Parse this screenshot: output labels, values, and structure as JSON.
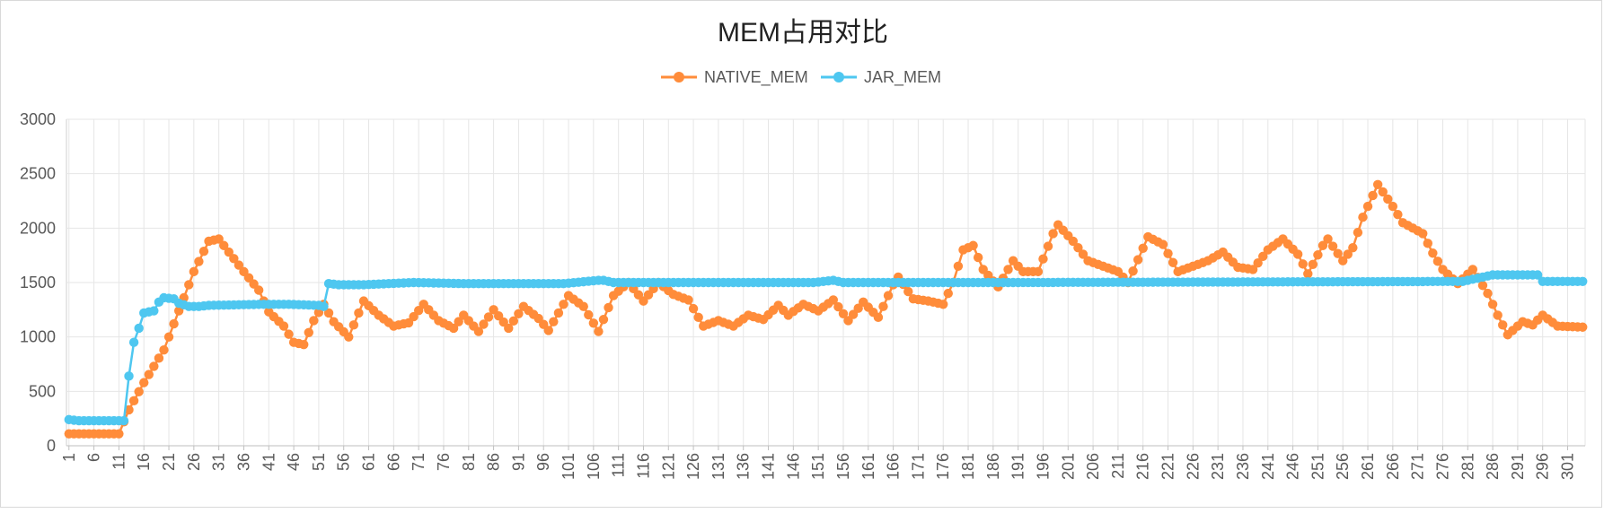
{
  "chart_data": {
    "type": "line",
    "title": "MEM占用对比",
    "xlabel": "",
    "ylabel": "",
    "ylim": [
      0,
      3000
    ],
    "yticks": [
      0,
      500,
      1000,
      1500,
      2000,
      2500,
      3000
    ],
    "x_range": [
      1,
      304
    ],
    "x_tick_step": 5,
    "grid": true,
    "legend_position": "top-center",
    "series": [
      {
        "name": "NATIVE_MEM",
        "color": "#FF8C3A",
        "anchors": [
          [
            1,
            110
          ],
          [
            11,
            110
          ],
          [
            13,
            330
          ],
          [
            16,
            580
          ],
          [
            20,
            880
          ],
          [
            26,
            1600
          ],
          [
            29,
            1880
          ],
          [
            31,
            1900
          ],
          [
            33,
            1780
          ],
          [
            36,
            1600
          ],
          [
            39,
            1430
          ],
          [
            41,
            1230
          ],
          [
            44,
            1100
          ],
          [
            46,
            950
          ],
          [
            48,
            930
          ],
          [
            50,
            1150
          ],
          [
            52,
            1300
          ],
          [
            54,
            1140
          ],
          [
            57,
            1000
          ],
          [
            60,
            1330
          ],
          [
            63,
            1200
          ],
          [
            66,
            1100
          ],
          [
            69,
            1130
          ],
          [
            72,
            1300
          ],
          [
            75,
            1150
          ],
          [
            78,
            1080
          ],
          [
            80,
            1200
          ],
          [
            83,
            1050
          ],
          [
            86,
            1250
          ],
          [
            89,
            1080
          ],
          [
            92,
            1280
          ],
          [
            95,
            1170
          ],
          [
            97,
            1060
          ],
          [
            101,
            1380
          ],
          [
            104,
            1280
          ],
          [
            107,
            1050
          ],
          [
            110,
            1380
          ],
          [
            113,
            1500
          ],
          [
            116,
            1330
          ],
          [
            119,
            1500
          ],
          [
            122,
            1390
          ],
          [
            125,
            1340
          ],
          [
            128,
            1100
          ],
          [
            131,
            1150
          ],
          [
            134,
            1100
          ],
          [
            137,
            1200
          ],
          [
            140,
            1160
          ],
          [
            143,
            1290
          ],
          [
            145,
            1200
          ],
          [
            148,
            1300
          ],
          [
            151,
            1240
          ],
          [
            154,
            1340
          ],
          [
            157,
            1150
          ],
          [
            160,
            1320
          ],
          [
            163,
            1180
          ],
          [
            166,
            1480
          ],
          [
            167,
            1550
          ],
          [
            170,
            1350
          ],
          [
            173,
            1330
          ],
          [
            176,
            1300
          ],
          [
            178,
            1500
          ],
          [
            180,
            1800
          ],
          [
            182,
            1840
          ],
          [
            184,
            1620
          ],
          [
            187,
            1460
          ],
          [
            190,
            1700
          ],
          [
            192,
            1600
          ],
          [
            195,
            1600
          ],
          [
            198,
            1950
          ],
          [
            199,
            2030
          ],
          [
            202,
            1880
          ],
          [
            205,
            1700
          ],
          [
            208,
            1650
          ],
          [
            211,
            1600
          ],
          [
            213,
            1500
          ],
          [
            217,
            1920
          ],
          [
            220,
            1850
          ],
          [
            223,
            1600
          ],
          [
            226,
            1650
          ],
          [
            229,
            1700
          ],
          [
            232,
            1780
          ],
          [
            235,
            1640
          ],
          [
            238,
            1620
          ],
          [
            241,
            1800
          ],
          [
            244,
            1900
          ],
          [
            247,
            1760
          ],
          [
            249,
            1580
          ],
          [
            252,
            1840
          ],
          [
            253,
            1900
          ],
          [
            256,
            1700
          ],
          [
            258,
            1820
          ],
          [
            260,
            2100
          ],
          [
            262,
            2300
          ],
          [
            263,
            2400
          ],
          [
            266,
            2200
          ],
          [
            268,
            2050
          ],
          [
            272,
            1950
          ],
          [
            274,
            1770
          ],
          [
            276,
            1620
          ],
          [
            279,
            1490
          ],
          [
            282,
            1620
          ],
          [
            285,
            1400
          ],
          [
            287,
            1200
          ],
          [
            289,
            1020
          ],
          [
            292,
            1140
          ],
          [
            294,
            1110
          ],
          [
            296,
            1200
          ],
          [
            299,
            1100
          ],
          [
            304,
            1090
          ]
        ]
      },
      {
        "name": "JAR_MEM",
        "color": "#4EC7F0",
        "anchors": [
          [
            1,
            240
          ],
          [
            3,
            230
          ],
          [
            12,
            230
          ],
          [
            13,
            640
          ],
          [
            14,
            950
          ],
          [
            15,
            1080
          ],
          [
            16,
            1220
          ],
          [
            18,
            1240
          ],
          [
            19,
            1320
          ],
          [
            20,
            1360
          ],
          [
            22,
            1350
          ],
          [
            23,
            1310
          ],
          [
            25,
            1280
          ],
          [
            27,
            1280
          ],
          [
            29,
            1290
          ],
          [
            40,
            1300
          ],
          [
            45,
            1300
          ],
          [
            51,
            1290
          ],
          [
            52,
            1280
          ],
          [
            53,
            1490
          ],
          [
            55,
            1480
          ],
          [
            60,
            1480
          ],
          [
            70,
            1500
          ],
          [
            80,
            1490
          ],
          [
            100,
            1490
          ],
          [
            107,
            1520
          ],
          [
            108,
            1520
          ],
          [
            110,
            1500
          ],
          [
            150,
            1500
          ],
          [
            154,
            1520
          ],
          [
            156,
            1500
          ],
          [
            190,
            1500
          ],
          [
            280,
            1510
          ],
          [
            286,
            1570
          ],
          [
            290,
            1570
          ],
          [
            295,
            1570
          ],
          [
            296,
            1510
          ],
          [
            304,
            1510
          ]
        ]
      }
    ]
  }
}
